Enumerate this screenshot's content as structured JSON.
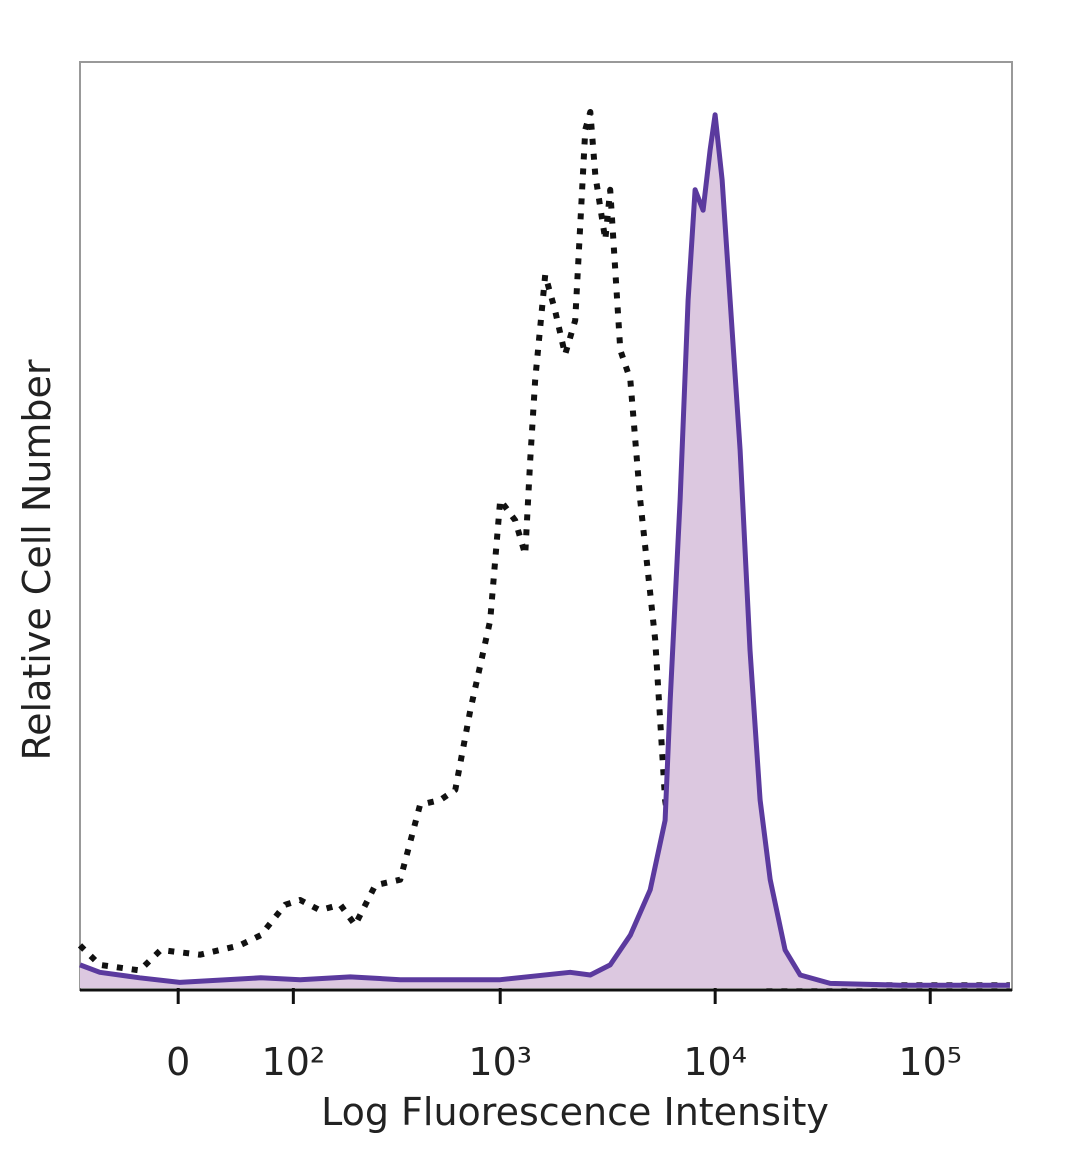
{
  "chart_data": {
    "type": "histogram-overlay",
    "x_label": "Log Fluorescence Intensity",
    "y_label": "Relative Cell Number",
    "xscale": "biexponential",
    "xlim": [
      -80,
      240000
    ],
    "ylim": [
      0,
      100
    ],
    "xticks": [
      0,
      {
        "value": 100,
        "label": "10²"
      },
      {
        "value": 1000,
        "label": "10³"
      },
      {
        "value": 10000,
        "label": "10⁴"
      },
      {
        "value": 100000,
        "label": "10⁵"
      }
    ],
    "series": [
      {
        "color": "#111111",
        "style": "dotted",
        "x": [
          -80,
          -60,
          -27,
          -12,
          15,
          45,
          64,
          90,
          109,
          138,
          175,
          207,
          259,
          340,
          422,
          525,
          617,
          725,
          898,
          1000,
          1175,
          1307,
          1380,
          1456,
          1620,
          1800,
          2005,
          2235,
          2490,
          2625,
          2770,
          3085,
          3250,
          3620,
          4030,
          4480,
          5260,
          5850,
          6870,
          8510,
          10540,
          16180,
          72500,
          234700
        ],
        "values": [
          4.6,
          2.5,
          1.9,
          4.1,
          3.6,
          4.6,
          5.7,
          9.0,
          9.5,
          8.4,
          9.0,
          6.8,
          11.1,
          11.7,
          19.8,
          20.3,
          21.4,
          30.0,
          39.7,
          52.7,
          50.5,
          46.8,
          57.0,
          65.7,
          77.0,
          73.2,
          68.4,
          72.1,
          92.7,
          94.6,
          87.8,
          80.8,
          86.2,
          68.9,
          65.7,
          52.7,
          37.6,
          20.3,
          9.5,
          3.0,
          0.9,
          0.3,
          0.3,
          0.3
        ]
      },
      {
        "color": "#5b3a9e",
        "fill": "#dcc8e0",
        "style": "solid",
        "x": [
          -80,
          -60,
          -27,
          1,
          64,
          109,
          196,
          340,
          1000,
          2115,
          2625,
          3250,
          4030,
          4990,
          5850,
          6180,
          6870,
          7485,
          8065,
          8785,
          9470,
          9990,
          10770,
          11730,
          13060,
          14520,
          16180,
          18030,
          21150,
          24850,
          34270,
          72500,
          234700
        ],
        "values": [
          2.5,
          1.7,
          1.1,
          0.6,
          1.1,
          0.9,
          1.2,
          0.9,
          0.9,
          1.7,
          1.4,
          2.5,
          5.7,
          10.6,
          18.1,
          31.1,
          52.7,
          74.3,
          86.2,
          84.0,
          90.5,
          94.3,
          87.3,
          74.3,
          58.1,
          36.5,
          20.3,
          11.7,
          4.1,
          1.4,
          0.5,
          0.3,
          0.3
        ]
      }
    ]
  }
}
